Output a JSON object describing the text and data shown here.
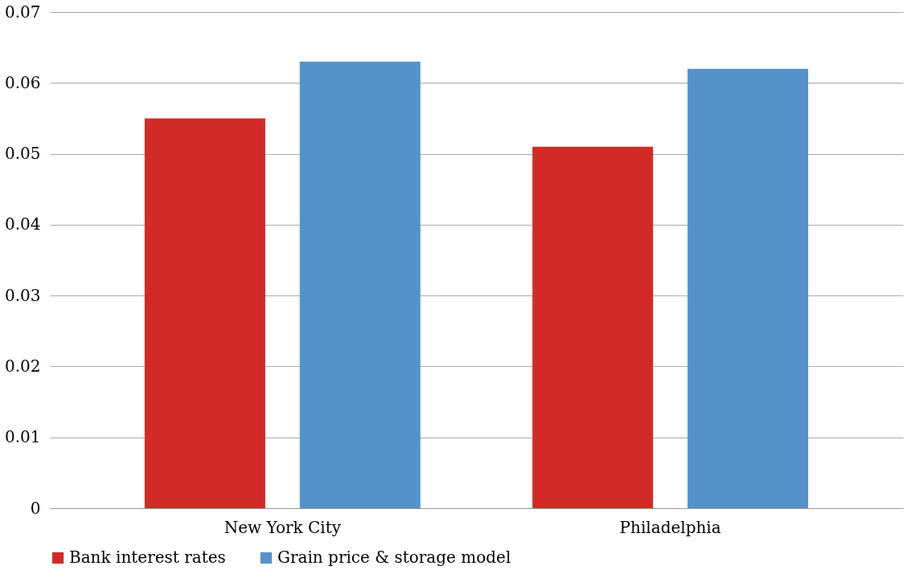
{
  "chart_data": {
    "type": "bar",
    "categories": [
      "New York City",
      "Philadelphia"
    ],
    "series": [
      {
        "name": "Bank interest rates",
        "color": "#d22b27",
        "values": [
          0.055,
          0.051
        ]
      },
      {
        "name": "Grain price & storage model",
        "color": "#5592c9",
        "values": [
          0.063,
          0.062
        ]
      }
    ],
    "ylim": [
      0,
      0.07
    ],
    "yticks": [
      {
        "value": 0,
        "label": "0"
      },
      0.01,
      0.02,
      0.03,
      0.04,
      0.05,
      0.06,
      0.07
    ],
    "grid": "y",
    "legend": "bottom"
  }
}
